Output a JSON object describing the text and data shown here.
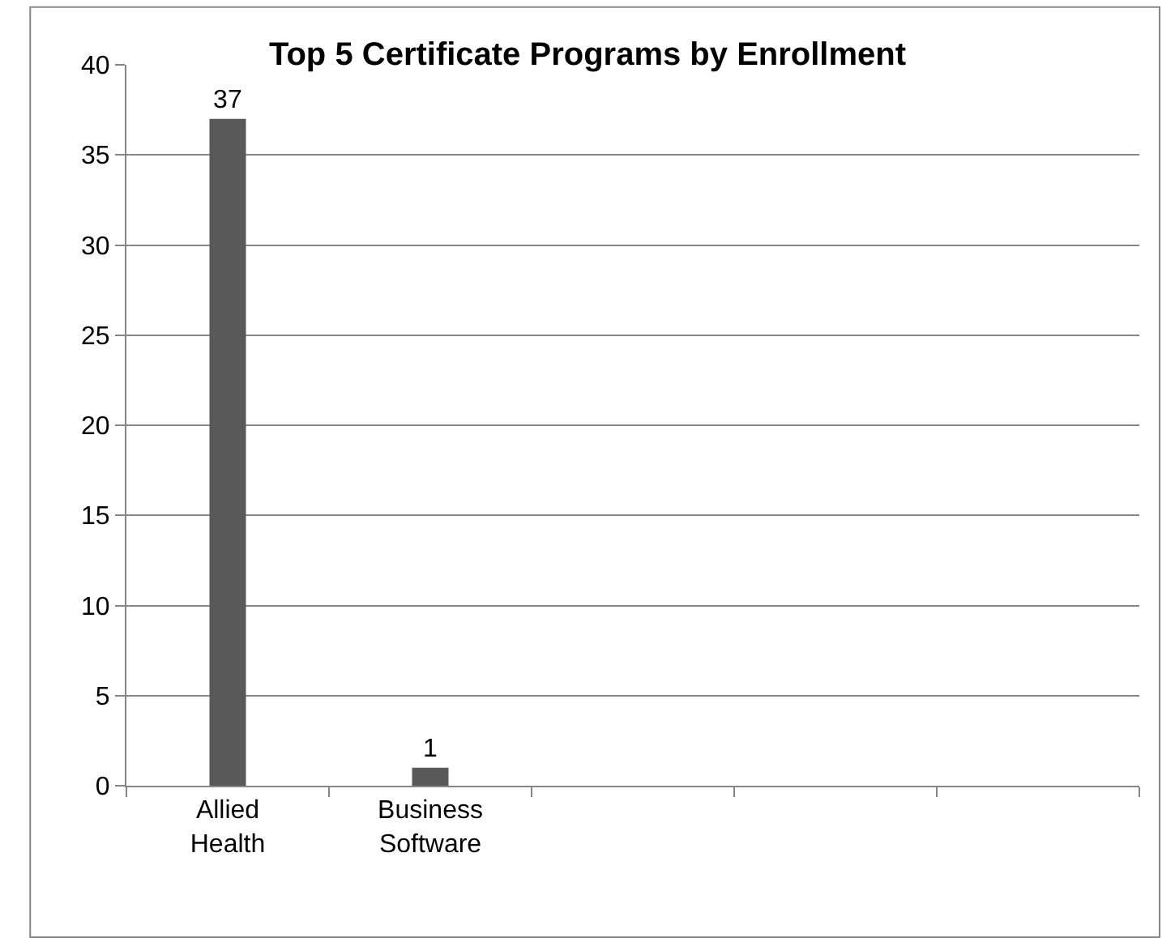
{
  "chart_data": {
    "type": "bar",
    "title": "Top 5 Certificate Programs by Enrollment",
    "categories": [
      "Allied Health",
      "Business Software",
      null,
      null,
      null
    ],
    "values": [
      37,
      1,
      null,
      null,
      null
    ],
    "color": "#595959",
    "ylim": [
      0,
      40
    ],
    "yticks": [
      0,
      5,
      10,
      15,
      20,
      25,
      30,
      35,
      40
    ],
    "grid": "y",
    "data_labels": true,
    "legend": false
  }
}
